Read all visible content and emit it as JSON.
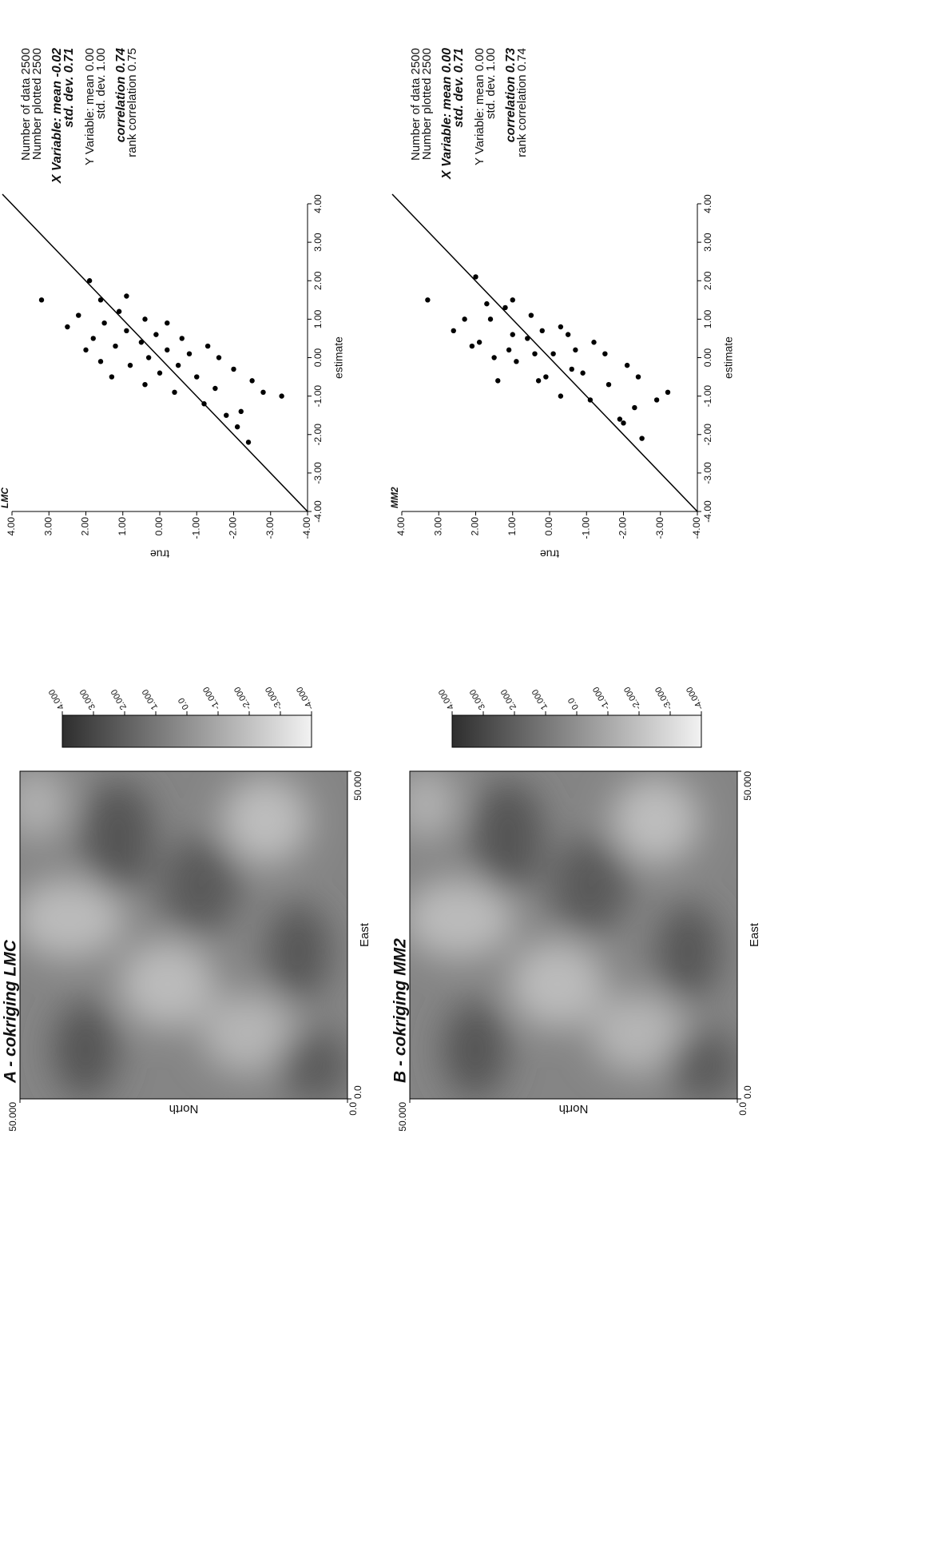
{
  "maps": [
    {
      "title": "A - cokriging LMC",
      "xlabel": "East",
      "ylabel": "North",
      "xlim": [
        0,
        50
      ],
      "ylim": [
        0,
        50
      ],
      "xticks": [
        {
          "value": 0,
          "label": "0.0"
        },
        {
          "value": 50,
          "label": "50.000"
        }
      ],
      "yticks": [
        {
          "value": 0,
          "label": "0.0"
        },
        {
          "value": 50,
          "label": "50.000"
        }
      ],
      "colorbar": {
        "lim": [
          -4,
          4
        ],
        "ticks": [
          {
            "value": 4,
            "label": "4.000"
          },
          {
            "value": 3,
            "label": "3.000"
          },
          {
            "value": 2,
            "label": "2.000"
          },
          {
            "value": 1,
            "label": "1.000"
          },
          {
            "value": 0,
            "label": "0.0"
          },
          {
            "value": -1,
            "label": "-1.000"
          },
          {
            "value": -2,
            "label": "-2.000"
          },
          {
            "value": -3,
            "label": "-3.000"
          },
          {
            "value": -4,
            "label": "-4.000"
          }
        ]
      }
    },
    {
      "title": "B - cokriging MM2",
      "xlabel": "East",
      "ylabel": "North",
      "xlim": [
        0,
        50
      ],
      "ylim": [
        0,
        50
      ],
      "xticks": [
        {
          "value": 0,
          "label": "0.0"
        },
        {
          "value": 50,
          "label": "50.000"
        }
      ],
      "yticks": [
        {
          "value": 0,
          "label": "0.0"
        },
        {
          "value": 50,
          "label": "50.000"
        }
      ],
      "colorbar": {
        "lim": [
          -4,
          4
        ],
        "ticks": [
          {
            "value": 4,
            "label": "4.000"
          },
          {
            "value": 3,
            "label": "3.000"
          },
          {
            "value": 2,
            "label": "2.000"
          },
          {
            "value": 1,
            "label": "1.000"
          },
          {
            "value": 0,
            "label": "0.0"
          },
          {
            "value": -1,
            "label": "-1.000"
          },
          {
            "value": -2,
            "label": "-2.000"
          },
          {
            "value": -3,
            "label": "-3.000"
          },
          {
            "value": -4,
            "label": "-4.000"
          }
        ]
      }
    }
  ],
  "chart_data": [
    {
      "type": "scatter",
      "title": "LMC",
      "xlabel": "estimate",
      "ylabel": "true",
      "color": "#000000",
      "xlim": [
        -4,
        4
      ],
      "ylim": [
        -4,
        4
      ],
      "xticks": [
        {
          "value": -4,
          "label": "-4.00"
        },
        {
          "value": -3,
          "label": "-3.00"
        },
        {
          "value": -2,
          "label": "-2.00"
        },
        {
          "value": -1,
          "label": "-1.00"
        },
        {
          "value": 0,
          "label": "0.00"
        },
        {
          "value": 1,
          "label": "1.00"
        },
        {
          "value": 2,
          "label": "2.00"
        },
        {
          "value": 3,
          "label": "3.00"
        },
        {
          "value": 4,
          "label": "4.00"
        }
      ],
      "yticks": [
        {
          "value": -4,
          "label": "-4.00"
        },
        {
          "value": -3,
          "label": "-3.00"
        },
        {
          "value": -2,
          "label": "-2.00"
        },
        {
          "value": -1,
          "label": "-1.00"
        },
        {
          "value": 0,
          "label": "0.00"
        },
        {
          "value": 1,
          "label": "1.00"
        },
        {
          "value": 2,
          "label": "2.00"
        },
        {
          "value": 3,
          "label": "3.00"
        },
        {
          "value": 4,
          "label": "4.00"
        }
      ],
      "x": [
        -1.0,
        -0.9,
        -0.6,
        -1.4,
        -0.3,
        -1.8,
        0.0,
        -0.8,
        -1.2,
        0.3,
        -0.5,
        0.1,
        -0.2,
        0.5,
        -0.9,
        0.2,
        -0.4,
        0.6,
        0.0,
        -0.7,
        0.4,
        1.0,
        -0.2,
        0.7,
        0.3,
        1.2,
        -0.5,
        0.9,
        0.5,
        1.5,
        0.2,
        1.1,
        0.8,
        1.5,
        -1.5,
        1.6,
        -0.1,
        0.9,
        -2.2,
        2.0
      ],
      "values": [
        -3.3,
        -2.8,
        -2.5,
        -2.2,
        -2.0,
        -2.1,
        -1.6,
        -1.5,
        -1.2,
        -1.3,
        -1.0,
        -0.8,
        -0.5,
        -0.6,
        -0.4,
        -0.2,
        0.0,
        0.1,
        0.3,
        0.4,
        0.5,
        0.4,
        0.8,
        0.9,
        1.2,
        1.1,
        1.3,
        1.5,
        1.8,
        1.6,
        2.0,
        2.2,
        2.5,
        3.2,
        -1.8,
        0.9,
        1.6,
        -0.2,
        -2.4,
        1.9
      ],
      "stats": [
        {
          "text": "Number of data 2500"
        },
        {
          "text": "Number plotted 2500"
        },
        {
          "text": "X Variable: mean -0.02",
          "emphasis": true
        },
        {
          "text": "std. dev. 0.71",
          "emphasis": true
        },
        {
          "text": "Y Variable: mean 0.00"
        },
        {
          "text": "std. dev. 1.00"
        },
        {
          "text": "correlation 0.74",
          "emphasis": true
        },
        {
          "text": "rank correlation 0.75"
        }
      ]
    },
    {
      "type": "scatter",
      "title": "MM2",
      "xlabel": "estimate",
      "ylabel": "true",
      "color": "#000000",
      "xlim": [
        -4,
        4
      ],
      "ylim": [
        -4,
        4
      ],
      "xticks": [
        {
          "value": -4,
          "label": "-4.00"
        },
        {
          "value": -3,
          "label": "-3.00"
        },
        {
          "value": -2,
          "label": "-2.00"
        },
        {
          "value": -1,
          "label": "-1.00"
        },
        {
          "value": 0,
          "label": "0.00"
        },
        {
          "value": 1,
          "label": "1.00"
        },
        {
          "value": 2,
          "label": "2.00"
        },
        {
          "value": 3,
          "label": "3.00"
        },
        {
          "value": 4,
          "label": "4.00"
        }
      ],
      "yticks": [
        {
          "value": -4,
          "label": "-4.00"
        },
        {
          "value": -3,
          "label": "-3.00"
        },
        {
          "value": -2,
          "label": "-2.00"
        },
        {
          "value": -1,
          "label": "-1.00"
        },
        {
          "value": 0,
          "label": "0.00"
        },
        {
          "value": 1,
          "label": "1.00"
        },
        {
          "value": 2,
          "label": "2.00"
        },
        {
          "value": 3,
          "label": "3.00"
        },
        {
          "value": 4,
          "label": "4.00"
        }
      ],
      "x": [
        -0.9,
        -1.1,
        -0.5,
        -1.3,
        -0.2,
        -1.7,
        0.1,
        -0.7,
        -1.1,
        0.4,
        -0.4,
        0.2,
        -0.3,
        0.6,
        -1.0,
        0.1,
        -0.5,
        0.7,
        0.1,
        -0.6,
        0.5,
        1.1,
        -0.1,
        0.6,
        0.2,
        1.3,
        -0.6,
        1.0,
        0.4,
        1.4,
        0.3,
        1.0,
        0.7,
        1.5,
        -1.6,
        1.5,
        0.0,
        0.8,
        -2.1,
        2.1
      ],
      "values": [
        -3.2,
        -2.9,
        -2.4,
        -2.3,
        -2.1,
        -2.0,
        -1.5,
        -1.6,
        -1.1,
        -1.2,
        -0.9,
        -0.7,
        -0.6,
        -0.5,
        -0.3,
        -0.1,
        0.1,
        0.2,
        0.4,
        0.3,
        0.6,
        0.5,
        0.9,
        1.0,
        1.1,
        1.2,
        1.4,
        1.6,
        1.9,
        1.7,
        2.1,
        2.3,
        2.6,
        3.3,
        -1.9,
        1.0,
        1.5,
        -0.3,
        -2.5,
        2.0
      ],
      "stats": [
        {
          "text": "Number of data 2500"
        },
        {
          "text": "Number plotted 2500"
        },
        {
          "text": "X Variable: mean 0.00",
          "emphasis": true
        },
        {
          "text": "std. dev. 0.71",
          "emphasis": true
        },
        {
          "text": "Y Variable: mean 0.00"
        },
        {
          "text": "std. dev. 1.00"
        },
        {
          "text": "correlation 0.73",
          "emphasis": true
        },
        {
          "text": "rank correlation 0.74"
        }
      ]
    }
  ]
}
